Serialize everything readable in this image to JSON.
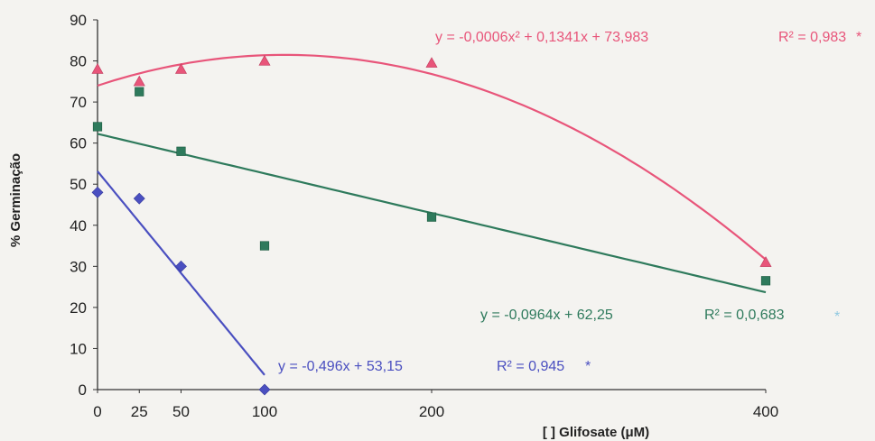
{
  "chart_data": {
    "type": "scatter",
    "xlabel": "[ ] Glifosate (μM)",
    "ylabel": "% Germinação",
    "xlim": [
      0,
      400
    ],
    "ylim": [
      0,
      90
    ],
    "x_ticks": [
      0,
      25,
      50,
      100,
      200,
      400
    ],
    "x_tick_labels": [
      "0",
      "25",
      "50",
      "100",
      "200",
      "400"
    ],
    "y_ticks": [
      0,
      10,
      20,
      30,
      40,
      50,
      60,
      70,
      80,
      90
    ],
    "y_tick_labels": [
      "0",
      "10",
      "20",
      "30",
      "40",
      "50",
      "60",
      "70",
      "80",
      "90"
    ],
    "grid": false,
    "series": [
      {
        "marker": "triangle",
        "color": "#e8557a",
        "points": [
          {
            "x": 0,
            "y": 78
          },
          {
            "x": 25,
            "y": 75
          },
          {
            "x": 50,
            "y": 78
          },
          {
            "x": 100,
            "y": 80
          },
          {
            "x": 200,
            "y": 79.5
          },
          {
            "x": 400,
            "y": 31
          }
        ],
        "fit": {
          "kind": "quadratic",
          "coef": [
            -0.0006,
            0.1341,
            73.983
          ]
        },
        "equation": "y = -0,0006x² + 0,1341x + 73,983",
        "r2": "R² = 0,983",
        "r2_star": "*"
      },
      {
        "marker": "square",
        "color": "#2e7a5c",
        "points": [
          {
            "x": 0,
            "y": 64
          },
          {
            "x": 25,
            "y": 72.5
          },
          {
            "x": 50,
            "y": 58
          },
          {
            "x": 100,
            "y": 35
          },
          {
            "x": 200,
            "y": 42
          },
          {
            "x": 400,
            "y": 26.5
          }
        ],
        "fit": {
          "kind": "linear",
          "coef": [
            -0.0964,
            62.25
          ]
        },
        "equation": "y = -0,0964x + 62,25",
        "r2": "R² = 0,0,683",
        "r2_star": "*"
      },
      {
        "marker": "diamond",
        "color": "#4a4fc0",
        "points": [
          {
            "x": 0,
            "y": 48
          },
          {
            "x": 25,
            "y": 46.5
          },
          {
            "x": 50,
            "y": 30
          },
          {
            "x": 100,
            "y": 0
          }
        ],
        "fit": {
          "kind": "linear",
          "coef": [
            -0.496,
            53.15
          ],
          "range": [
            0,
            100
          ]
        },
        "equation": "y = -0,496x + 53,15",
        "r2": "R² = 0,945",
        "r2_star": "*"
      }
    ],
    "colors": {
      "axis": "#333333",
      "r2_star_series2": "#8fc8e0"
    }
  }
}
